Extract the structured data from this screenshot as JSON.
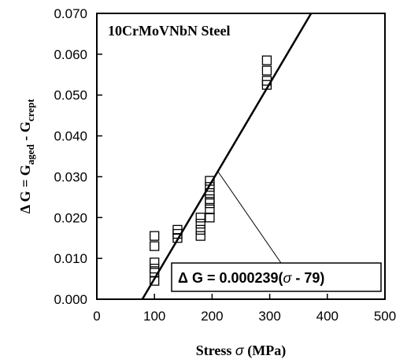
{
  "chart_data": {
    "type": "scatter",
    "title": "",
    "inset_label": "10CrMoVNbN Steel",
    "xlabel": {
      "text": "Stress",
      "symbol": "σ",
      "unit": "(MPa)"
    },
    "ylabel": {
      "lead": "Δ G = G",
      "sub1": "aged",
      "mid": " - G",
      "sub2": "crept"
    },
    "xlim": [
      0,
      500
    ],
    "ylim": [
      0,
      0.07
    ],
    "x_ticks": [
      "0",
      "100",
      "200",
      "300",
      "400",
      "500"
    ],
    "y_ticks": [
      "0.000",
      "0.010",
      "0.020",
      "0.030",
      "0.040",
      "0.050",
      "0.060",
      "0.070"
    ],
    "grid": false,
    "series": [
      {
        "marker": "open-square",
        "points": [
          [
            100,
            0.0155
          ],
          [
            100,
            0.013
          ],
          [
            100,
            0.009
          ],
          [
            100,
            0.0075
          ],
          [
            100,
            0.0065
          ],
          [
            100,
            0.0045
          ],
          [
            140,
            0.017
          ],
          [
            140,
            0.016
          ],
          [
            140,
            0.015
          ],
          [
            180,
            0.02
          ],
          [
            180,
            0.0185
          ],
          [
            180,
            0.017
          ],
          [
            180,
            0.0155
          ],
          [
            196,
            0.029
          ],
          [
            196,
            0.0275
          ],
          [
            196,
            0.026
          ],
          [
            196,
            0.0245
          ],
          [
            196,
            0.0235
          ],
          [
            196,
            0.022
          ],
          [
            196,
            0.02
          ],
          [
            295,
            0.0585
          ],
          [
            295,
            0.056
          ],
          [
            295,
            0.0535
          ],
          [
            295,
            0.0525
          ]
        ]
      }
    ],
    "fit_line": {
      "slope": 0.000239,
      "intercept_x": 79,
      "equation": {
        "lhs": "Δ G",
        "eq": " = 0.000239(",
        "sym": "σ",
        "rest": " - 79)"
      }
    }
  }
}
